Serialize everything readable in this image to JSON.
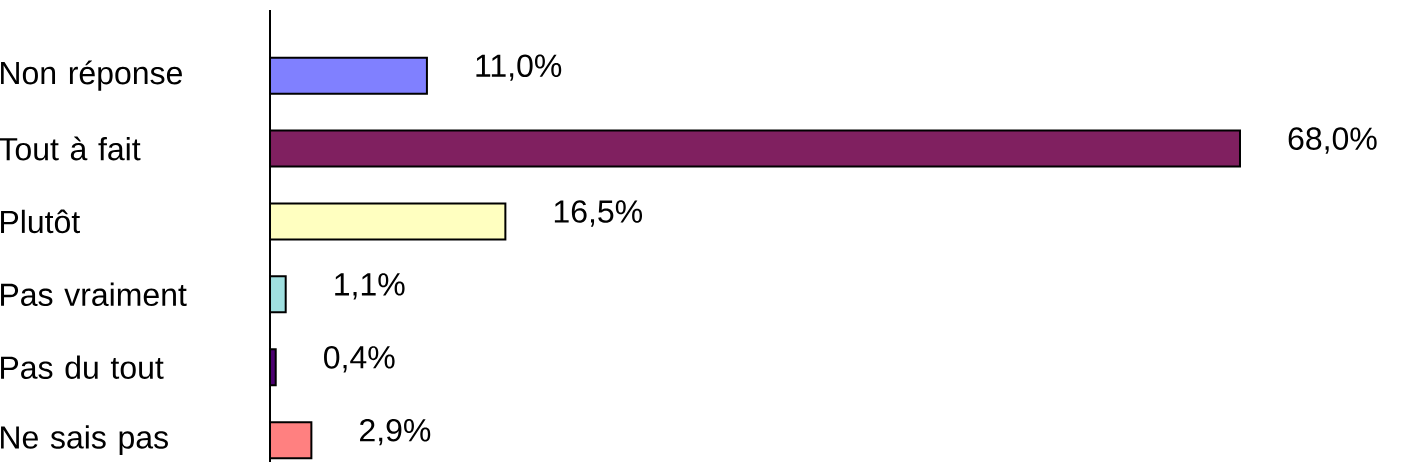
{
  "chart_data": {
    "type": "bar",
    "orientation": "horizontal",
    "categories": [
      "Non réponse",
      "Tout à fait",
      "Plutôt",
      "Pas vraiment",
      "Pas du tout",
      "Ne sais pas"
    ],
    "values": [
      11.0,
      68.0,
      16.5,
      1.1,
      0.4,
      2.9
    ],
    "value_labels": [
      "11,0%",
      "68,0%",
      "16,5%",
      "1,1%",
      "0,4%",
      "2,9%"
    ],
    "colors": [
      "#8080ff",
      "#802060",
      "#ffffc0",
      "#a0e0e0",
      "#4c0070",
      "#ff8080"
    ]
  }
}
